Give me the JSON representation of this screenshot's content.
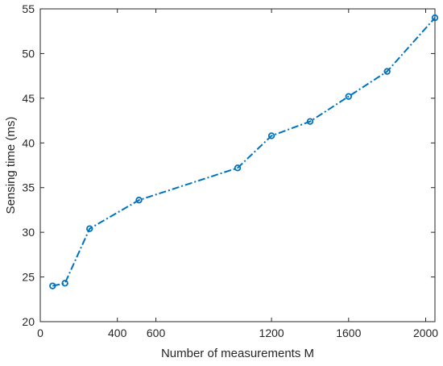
{
  "chart_data": {
    "type": "line",
    "xlabel": "Number of measurements M",
    "ylabel": "Sensing time (ms)",
    "xlim": [
      0,
      2048
    ],
    "ylim": [
      20,
      55
    ],
    "xticks": [
      0,
      400,
      600,
      1200,
      1600,
      2000
    ],
    "xtick_labels": [
      "0",
      "400",
      "600",
      "1200",
      "1600",
      "2000"
    ],
    "yticks": [
      20,
      25,
      30,
      35,
      40,
      45,
      50,
      55
    ],
    "ytick_labels": [
      "20",
      "25",
      "30",
      "35",
      "40",
      "45",
      "50",
      "55"
    ],
    "grid": false,
    "series": [
      {
        "color": "#0072BD",
        "line_style": "dash-dot",
        "marker": "circle",
        "x": [
          64,
          128,
          256,
          512,
          1024,
          1200,
          1400,
          1600,
          1800,
          2048
        ],
        "y": [
          24.0,
          24.3,
          30.4,
          33.6,
          37.2,
          40.8,
          42.4,
          45.2,
          48.0,
          54.0
        ]
      }
    ]
  }
}
